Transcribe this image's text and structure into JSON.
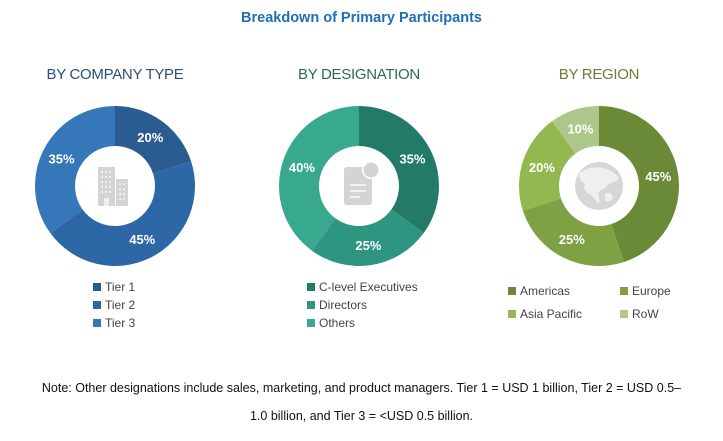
{
  "title": "Breakdown of Primary Participants",
  "colors": {
    "title": "#1f6fb5",
    "icon_gray": "#d4d4d4"
  },
  "chart_data": [
    {
      "type": "pie",
      "variant": "donut",
      "title": "BY COMPANY TYPE",
      "center_icon": "building-icon",
      "categories": [
        "Tier 1",
        "Tier 2",
        "Tier 3"
      ],
      "values": [
        20,
        45,
        35
      ],
      "labels": [
        "20%",
        "45%",
        "35%"
      ],
      "colors": [
        "#2b5c8f",
        "#2e67a6",
        "#3577b9"
      ],
      "legend": {
        "placement": "bottom",
        "items": [
          "Tier 1",
          "Tier 2",
          "Tier 3"
        ]
      }
    },
    {
      "type": "pie",
      "variant": "donut",
      "title": "BY DESIGNATION",
      "center_icon": "document-icon",
      "categories": [
        "C-level Executives",
        "Directors",
        "Others"
      ],
      "values": [
        35,
        25,
        40
      ],
      "labels": [
        "35%",
        "25%",
        "40%"
      ],
      "colors": [
        "#247a68",
        "#2d9580",
        "#38a88f"
      ],
      "legend": {
        "placement": "bottom",
        "items": [
          "C-level Executives",
          "Directors",
          "Others"
        ]
      }
    },
    {
      "type": "pie",
      "variant": "donut",
      "title": "BY REGION",
      "center_icon": "globe-icon",
      "categories": [
        "Americas",
        "Europe",
        "Asia Pacific",
        "RoW"
      ],
      "values": [
        45,
        25,
        20,
        10
      ],
      "labels": [
        "45%",
        "25%",
        "20%",
        "10%"
      ],
      "colors": [
        "#6b8a38",
        "#7ea143",
        "#93b84f",
        "#adc78a"
      ],
      "legend": {
        "placement": "bottom",
        "items": [
          "Americas",
          "Europe",
          "Asia Pacific",
          "RoW"
        ]
      }
    }
  ],
  "note": {
    "line1": "Note: Other designations include sales, marketing, and product managers. Tier 1 = USD 1 billion, Tier 2 = USD 0.5–",
    "line2": "1.0 billion, and Tier 3 = <USD 0.5 billion."
  }
}
